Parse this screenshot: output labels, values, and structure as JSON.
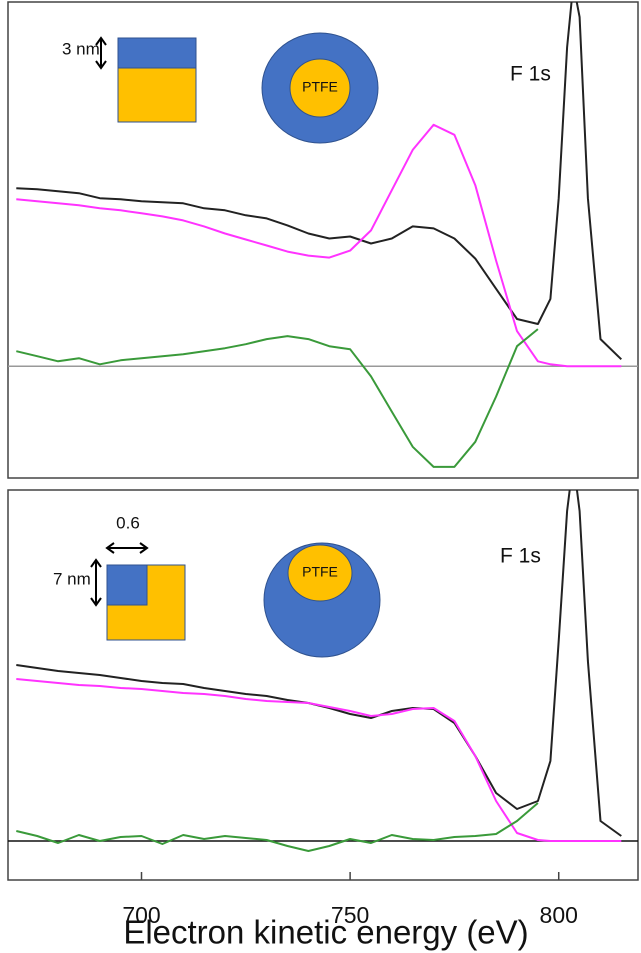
{
  "chart_data": [
    {
      "type": "line",
      "annotations": [
        "F 1s",
        "3 nm",
        "PTFE"
      ],
      "x": [
        670,
        675,
        680,
        685,
        690,
        695,
        700,
        705,
        710,
        715,
        720,
        725,
        730,
        735,
        740,
        745,
        750,
        755,
        760,
        765,
        770,
        775,
        780,
        785,
        790,
        795,
        798,
        800,
        802,
        803.5,
        805,
        807,
        810,
        815
      ],
      "xlim": [
        668,
        819
      ],
      "ylim": [
        -1.11,
        3.62
      ],
      "baseline_color": "#999999",
      "series": [
        {
          "color": "#222222",
          "values": [
            1.77,
            1.76,
            1.74,
            1.72,
            1.67,
            1.66,
            1.64,
            1.63,
            1.62,
            1.57,
            1.55,
            1.5,
            1.47,
            1.4,
            1.32,
            1.27,
            1.29,
            1.22,
            1.27,
            1.39,
            1.37,
            1.27,
            1.07,
            0.77,
            0.47,
            0.42,
            0.67,
            1.67,
            3.17,
            3.8,
            3.47,
            1.67,
            0.27,
            0.07
          ]
        },
        {
          "color": "#ff33ff",
          "values": [
            1.66,
            1.64,
            1.62,
            1.6,
            1.57,
            1.55,
            1.52,
            1.49,
            1.45,
            1.39,
            1.32,
            1.26,
            1.2,
            1.14,
            1.1,
            1.08,
            1.15,
            1.35,
            1.75,
            2.15,
            2.4,
            2.3,
            1.8,
            1.05,
            0.35,
            0.05,
            0.02,
            0.01,
            0,
            0,
            0,
            0,
            0,
            0
          ]
        },
        {
          "color": "#3a9a3a",
          "values": [
            0.15,
            0.1,
            0.05,
            0.08,
            0.02,
            0.06,
            0.08,
            0.1,
            0.12,
            0.15,
            0.18,
            0.22,
            0.27,
            0.3,
            0.27,
            0.2,
            0.17,
            -0.1,
            -0.45,
            -0.8,
            -1.0,
            -1.0,
            -0.75,
            -0.3,
            0.2,
            0.37,
            null,
            null,
            null,
            null,
            null,
            null,
            null,
            null
          ]
        }
      ]
    },
    {
      "type": "line",
      "annotations": [
        "F 1s",
        "0.6",
        "7 nm",
        "PTFE"
      ],
      "xlabel": "Electron kinetic energy (eV)",
      "x": [
        670,
        675,
        680,
        685,
        690,
        695,
        700,
        705,
        710,
        715,
        720,
        725,
        730,
        735,
        740,
        745,
        750,
        755,
        760,
        765,
        770,
        775,
        780,
        785,
        790,
        795,
        798,
        800,
        802,
        803.5,
        805,
        807,
        810,
        815
      ],
      "xlim": [
        668,
        819
      ],
      "xticks": [
        700,
        750,
        800
      ],
      "ylim": [
        -0.39,
        3.51
      ],
      "baseline_color": "#111111",
      "series": [
        {
          "color": "#222222",
          "values": [
            1.76,
            1.73,
            1.7,
            1.68,
            1.66,
            1.63,
            1.6,
            1.58,
            1.57,
            1.53,
            1.5,
            1.47,
            1.45,
            1.41,
            1.38,
            1.33,
            1.27,
            1.23,
            1.3,
            1.33,
            1.32,
            1.18,
            0.85,
            0.48,
            0.32,
            0.4,
            0.8,
            2.0,
            3.3,
            3.8,
            3.3,
            1.8,
            0.2,
            0.05
          ]
        },
        {
          "color": "#ff33ff",
          "values": [
            1.62,
            1.6,
            1.58,
            1.56,
            1.55,
            1.53,
            1.52,
            1.5,
            1.48,
            1.47,
            1.45,
            1.42,
            1.4,
            1.39,
            1.38,
            1.34,
            1.3,
            1.25,
            1.27,
            1.32,
            1.33,
            1.2,
            0.85,
            0.4,
            0.08,
            0.01,
            0,
            0,
            0,
            0,
            0,
            0,
            0,
            0
          ]
        },
        {
          "color": "#3a9a3a",
          "values": [
            0.1,
            0.05,
            -0.02,
            0.06,
            0.0,
            0.04,
            0.05,
            -0.03,
            0.06,
            0.02,
            0.05,
            0.03,
            0.01,
            -0.05,
            -0.1,
            -0.05,
            0.02,
            -0.02,
            0.06,
            0.02,
            0.01,
            0.04,
            0.05,
            0.07,
            0.2,
            0.38,
            null,
            null,
            null,
            null,
            null,
            null,
            null,
            null
          ]
        }
      ]
    }
  ]
}
